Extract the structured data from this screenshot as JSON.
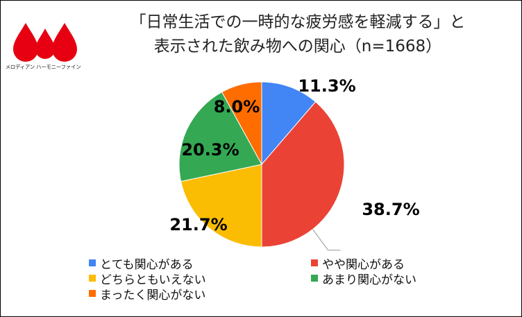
{
  "logo": {
    "text": "メロディアン ハーモニーファイン",
    "color": "#e60012"
  },
  "header": {
    "title_line1": "「日常生活での一時的な疲労感を軽減する」と",
    "title_line2": "表示された飲み物への関心（n=1668）"
  },
  "chart_data": {
    "type": "pie",
    "title": "「日常生活での一時的な疲労感を軽減する」と表示された飲み物への関心（n=1668）",
    "slices": [
      {
        "label": "とても関心がある",
        "value": 11.3,
        "display": "11.3%",
        "color": "#4285f4"
      },
      {
        "label": "やや関心がある",
        "value": 38.7,
        "display": "38.7%",
        "color": "#ea4335"
      },
      {
        "label": "どちらともいえない",
        "value": 21.7,
        "display": "21.7%",
        "color": "#fbbc04"
      },
      {
        "label": "あまり関心がない",
        "value": 20.3,
        "display": "20.3%",
        "color": "#34a853"
      },
      {
        "label": "まったく関心がない",
        "value": 8.0,
        "display": "8.0%",
        "color": "#ff6d01"
      }
    ],
    "legend_position": "bottom"
  }
}
